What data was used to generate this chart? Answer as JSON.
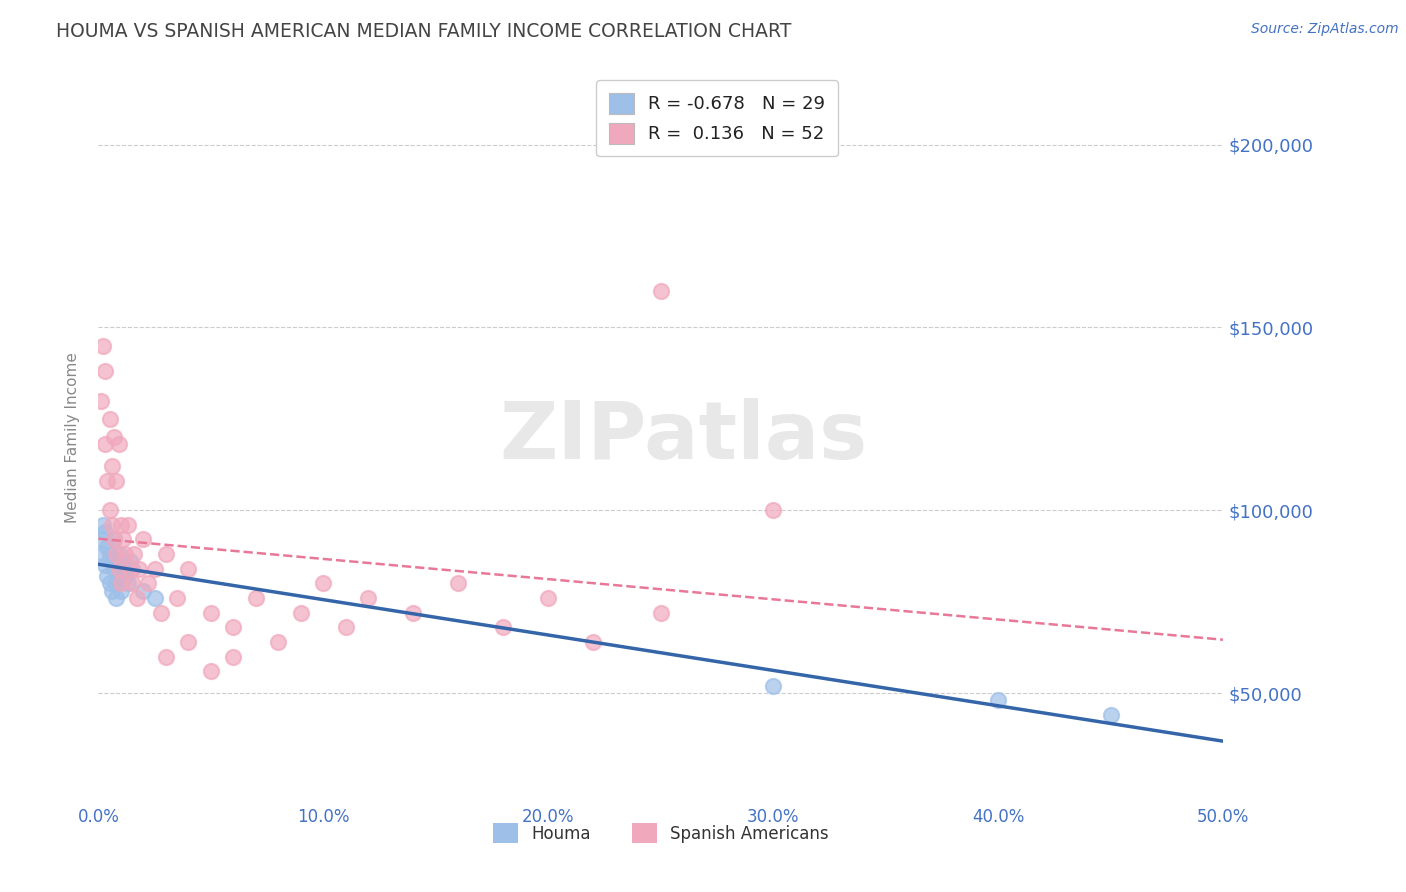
{
  "title": "HOUMA VS SPANISH AMERICAN MEDIAN FAMILY INCOME CORRELATION CHART",
  "source_text": "Source: ZipAtlas.com",
  "ylabel": "Median Family Income",
  "xlim": [
    0.0,
    0.5
  ],
  "ylim": [
    20000,
    220000
  ],
  "xtick_labels": [
    "0.0%",
    "10.0%",
    "20.0%",
    "30.0%",
    "40.0%",
    "50.0%"
  ],
  "xtick_vals": [
    0.0,
    0.1,
    0.2,
    0.3,
    0.4,
    0.5
  ],
  "ytick_vals": [
    50000,
    100000,
    150000,
    200000
  ],
  "ytick_labels": [
    "$50,000",
    "$100,000",
    "$150,000",
    "$200,000"
  ],
  "grid_color": "#cccccc",
  "background_color": "#ffffff",
  "title_color": "#444444",
  "axis_label_color": "#888888",
  "tick_label_color": "#4472c4",
  "watermark_text": "ZIPatlas",
  "watermark_color": "#e8e8e8",
  "legend_R1": "-0.678",
  "legend_N1": "29",
  "legend_R2": " 0.136",
  "legend_N2": "52",
  "houma_scatter_color": "#9dbfe8",
  "spanish_scatter_color": "#f0a8bc",
  "houma_line_color": "#3465a8",
  "spanish_line_color": "#e87898",
  "houma_points_x": [
    0.001,
    0.002,
    0.002,
    0.003,
    0.003,
    0.004,
    0.004,
    0.005,
    0.005,
    0.006,
    0.006,
    0.007,
    0.007,
    0.008,
    0.008,
    0.009,
    0.009,
    0.01,
    0.01,
    0.011,
    0.012,
    0.013,
    0.014,
    0.015,
    0.02,
    0.025,
    0.3,
    0.4,
    0.45
  ],
  "houma_points_y": [
    92000,
    96000,
    88000,
    94000,
    85000,
    90000,
    82000,
    88000,
    80000,
    86000,
    78000,
    92000,
    84000,
    80000,
    76000,
    88000,
    82000,
    86000,
    78000,
    84000,
    82000,
    80000,
    86000,
    84000,
    78000,
    76000,
    52000,
    48000,
    44000
  ],
  "spanish_points_x": [
    0.001,
    0.002,
    0.003,
    0.003,
    0.004,
    0.005,
    0.005,
    0.006,
    0.006,
    0.007,
    0.007,
    0.008,
    0.008,
    0.009,
    0.009,
    0.01,
    0.01,
    0.011,
    0.012,
    0.013,
    0.014,
    0.015,
    0.016,
    0.017,
    0.018,
    0.02,
    0.022,
    0.025,
    0.028,
    0.03,
    0.035,
    0.04,
    0.05,
    0.06,
    0.07,
    0.08,
    0.09,
    0.1,
    0.11,
    0.12,
    0.14,
    0.16,
    0.18,
    0.2,
    0.22,
    0.25,
    0.03,
    0.04,
    0.05,
    0.06,
    0.25,
    0.3
  ],
  "spanish_points_y": [
    130000,
    145000,
    118000,
    138000,
    108000,
    125000,
    100000,
    112000,
    96000,
    120000,
    92000,
    108000,
    88000,
    118000,
    84000,
    96000,
    80000,
    92000,
    88000,
    96000,
    84000,
    80000,
    88000,
    76000,
    84000,
    92000,
    80000,
    84000,
    72000,
    88000,
    76000,
    84000,
    72000,
    68000,
    76000,
    64000,
    72000,
    80000,
    68000,
    76000,
    72000,
    80000,
    68000,
    76000,
    64000,
    72000,
    60000,
    64000,
    56000,
    60000,
    160000,
    100000
  ]
}
